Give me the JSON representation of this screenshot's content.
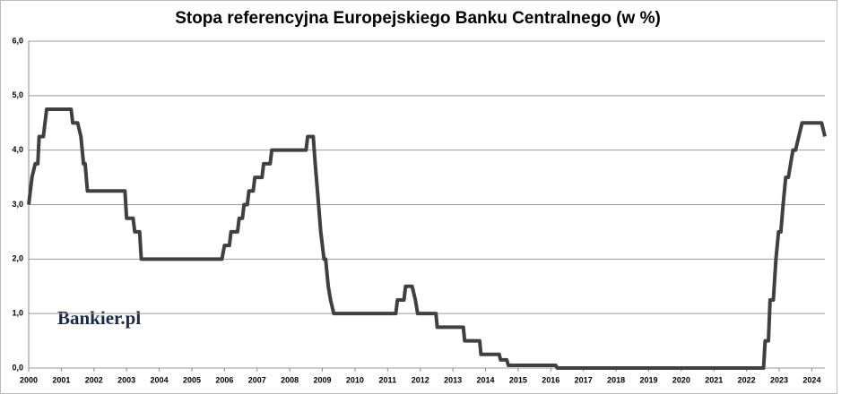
{
  "chart_data": {
    "type": "line",
    "title": "Stopa referencyjna Europejskiego Banku Centralnego (w %)",
    "brand": "Bankier.pl",
    "color": "#404040",
    "x": [
      2000.0,
      2000.1,
      2000.2,
      2000.28,
      2000.32,
      2000.45,
      2000.55,
      2001.3,
      2001.35,
      2001.5,
      2001.6,
      2001.68,
      2001.73,
      2001.8,
      2002.95,
      2003.0,
      2003.2,
      2003.25,
      2003.4,
      2003.45,
      2005.92,
      2006.0,
      2006.15,
      2006.2,
      2006.4,
      2006.45,
      2006.55,
      2006.6,
      2006.7,
      2006.75,
      2006.88,
      2006.93,
      2007.15,
      2007.2,
      2007.4,
      2007.45,
      2008.5,
      2008.55,
      2008.72,
      2008.78,
      2008.85,
      2008.95,
      2009.05,
      2009.1,
      2009.18,
      2009.25,
      2009.35,
      2011.25,
      2011.3,
      2011.5,
      2011.55,
      2011.75,
      2011.85,
      2011.92,
      2012.48,
      2012.52,
      2013.32,
      2013.36,
      2013.82,
      2013.86,
      2014.42,
      2014.46,
      2014.65,
      2014.7,
      2016.15,
      2016.2,
      2022.52,
      2022.57,
      2022.67,
      2022.72,
      2022.82,
      2022.9,
      2022.98,
      2023.05,
      2023.12,
      2023.2,
      2023.28,
      2023.35,
      2023.42,
      2023.5,
      2023.6,
      2023.7,
      2024.3,
      2024.4
    ],
    "values": [
      3.0,
      3.5,
      3.75,
      3.75,
      4.25,
      4.25,
      4.75,
      4.75,
      4.5,
      4.5,
      4.25,
      3.75,
      3.75,
      3.25,
      3.25,
      2.75,
      2.75,
      2.5,
      2.5,
      2.0,
      2.0,
      2.25,
      2.25,
      2.5,
      2.5,
      2.75,
      2.75,
      3.0,
      3.0,
      3.25,
      3.25,
      3.5,
      3.5,
      3.75,
      3.75,
      4.0,
      4.0,
      4.25,
      4.25,
      3.75,
      3.25,
      2.5,
      2.0,
      2.0,
      1.5,
      1.25,
      1.0,
      1.0,
      1.25,
      1.25,
      1.5,
      1.5,
      1.25,
      1.0,
      1.0,
      0.75,
      0.75,
      0.5,
      0.5,
      0.25,
      0.25,
      0.15,
      0.15,
      0.05,
      0.05,
      0.0,
      0.0,
      0.5,
      0.5,
      1.25,
      1.25,
      2.0,
      2.5,
      2.5,
      3.0,
      3.5,
      3.5,
      3.75,
      4.0,
      4.0,
      4.25,
      4.5,
      4.5,
      4.25
    ],
    "xlim": [
      2000,
      2024.4
    ],
    "xticks": [
      2000,
      2001,
      2002,
      2003,
      2004,
      2005,
      2006,
      2007,
      2008,
      2009,
      2010,
      2011,
      2012,
      2013,
      2014,
      2015,
      2016,
      2017,
      2018,
      2019,
      2020,
      2021,
      2022,
      2023,
      2024
    ],
    "ylim": [
      0,
      6
    ],
    "yticks": [
      {
        "value": 0,
        "label": "0,0"
      },
      {
        "value": 1,
        "label": "1,0"
      },
      {
        "value": 2,
        "label": "2,0"
      },
      {
        "value": 3,
        "label": "3,0"
      },
      {
        "value": 4,
        "label": "4,0"
      },
      {
        "value": 5,
        "label": "5,0"
      },
      {
        "value": 6,
        "label": "6,0"
      }
    ],
    "grid": true
  }
}
